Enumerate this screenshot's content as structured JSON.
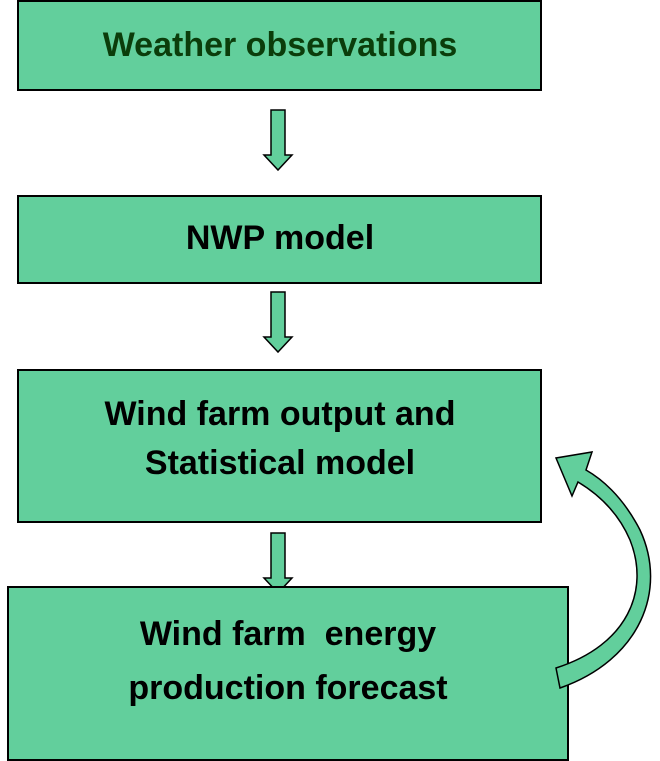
{
  "nodes": [
    {
      "lines": [
        "Weather observations"
      ]
    },
    {
      "lines": [
        "NWP model"
      ]
    },
    {
      "lines": [
        "Wind farm output and",
        "Statistical model"
      ]
    },
    {
      "lines": [
        "Wind farm  energy",
        "production forecast"
      ]
    }
  ]
}
